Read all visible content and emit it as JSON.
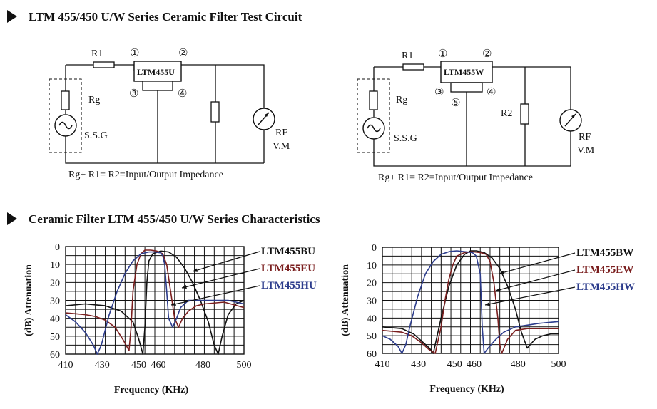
{
  "section1": {
    "title": "LTM 455/450 U/W Series Ceramic Filter Test Circuit"
  },
  "circuits": [
    {
      "filter_label": "LTM455U",
      "r1_label": "R1",
      "rg_label": "Rg",
      "ssg_label": "S.S.G",
      "rf_label": "RF",
      "vm_label": "V.M",
      "pins": [
        "①",
        "②",
        "③",
        "④"
      ],
      "equation": "Rg+ R1= R2=Input/Output Impedance"
    },
    {
      "filter_label": "LTM455W",
      "r1_label": "R1",
      "r2_label": "R2",
      "rg_label": "Rg",
      "ssg_label": "S.S.G",
      "rf_label": "RF",
      "vm_label": "V.M",
      "pins": [
        "①",
        "②",
        "③",
        "④",
        "⑤"
      ],
      "equation": "Rg+ R1= R2=Input/Output Impedance"
    }
  ],
  "section2": {
    "title": "Ceramic Filter LTM 455/450 U/W Series Characteristics"
  },
  "colors": {
    "black_series": "#111111",
    "red_series": "#7a1e1e",
    "blue_series": "#2c3c8c"
  },
  "chart_data": [
    {
      "type": "line",
      "xlabel": "Frequency (KHz)",
      "ylabel": "(dB) Attenuation",
      "x_ticks": [
        "410",
        "430",
        "450",
        "460",
        "480",
        "500"
      ],
      "y_ticks": [
        "0",
        "10",
        "20",
        "30",
        "40",
        "50",
        "60"
      ],
      "xlim": [
        410,
        500
      ],
      "ylim": [
        0,
        60
      ],
      "series": [
        {
          "name": "LTM455BU",
          "color": "#111111",
          "x": [
            410,
            420,
            430,
            438,
            444,
            447,
            449,
            450,
            451,
            452,
            454,
            458,
            462,
            466,
            470,
            474,
            478,
            482,
            485,
            487,
            489,
            492,
            496,
            500
          ],
          "y": [
            33,
            32,
            33,
            36,
            42,
            52,
            60,
            45,
            20,
            8,
            4,
            2.5,
            3,
            6,
            12,
            20,
            30,
            42,
            55,
            60,
            50,
            38,
            32,
            30
          ]
        },
        {
          "name": "LTM455EU",
          "color": "#7a1e1e",
          "x": [
            410,
            420,
            425,
            430,
            435,
            439,
            442,
            443,
            444,
            446,
            448,
            450,
            453,
            456,
            459,
            461,
            463,
            465,
            467,
            469,
            472,
            476,
            480,
            490,
            500
          ],
          "y": [
            37,
            38,
            39,
            41,
            45,
            52,
            58,
            45,
            25,
            10,
            4,
            2,
            2,
            2.5,
            4,
            10,
            25,
            40,
            45,
            40,
            36,
            33,
            32,
            31,
            34
          ]
        },
        {
          "name": "LTM455HU",
          "color": "#2c3c8c",
          "x": [
            410,
            415,
            420,
            424,
            426,
            428,
            432,
            436,
            440,
            444,
            448,
            452,
            455,
            458,
            459,
            460,
            461,
            462,
            464,
            466,
            468,
            472,
            478,
            485,
            492,
            500
          ],
          "y": [
            38,
            42,
            48,
            55,
            60,
            55,
            38,
            25,
            15,
            8,
            4,
            3,
            3,
            3.5,
            5,
            10,
            25,
            40,
            45,
            40,
            34,
            30,
            30,
            30,
            30,
            32
          ]
        }
      ],
      "annotations": [
        "LTM455BU",
        "LTM455EU",
        "LTM455HU"
      ]
    },
    {
      "type": "line",
      "xlabel": "Frequency (KHz)",
      "ylabel": "(dB) Attenuation",
      "x_ticks": [
        "410",
        "430",
        "450",
        "460",
        "480",
        "500"
      ],
      "y_ticks": [
        "0",
        "10",
        "20",
        "30",
        "40",
        "50",
        "60"
      ],
      "xlim": [
        410,
        500
      ],
      "ylim": [
        0,
        60
      ],
      "series": [
        {
          "name": "LTM455BW",
          "color": "#111111",
          "x": [
            410,
            420,
            426,
            430,
            434,
            436,
            440,
            444,
            448,
            452,
            455,
            458,
            462,
            466,
            470,
            474,
            478,
            481,
            484,
            488,
            492,
            496,
            500
          ],
          "y": [
            45,
            46,
            49,
            53,
            57,
            60,
            40,
            22,
            10,
            4,
            2,
            2,
            3,
            6,
            12,
            22,
            35,
            48,
            57,
            52,
            50,
            49,
            49
          ]
        },
        {
          "name": "LTM455EW",
          "color": "#7a1e1e",
          "x": [
            410,
            420,
            425,
            430,
            434,
            437,
            440,
            442,
            444,
            446,
            448,
            452,
            456,
            460,
            463,
            465,
            467,
            469,
            470,
            471,
            474,
            478,
            484,
            490,
            500
          ],
          "y": [
            47,
            48,
            50,
            54,
            58,
            60,
            45,
            30,
            18,
            10,
            5,
            3,
            2.5,
            3,
            4,
            8,
            20,
            40,
            55,
            60,
            52,
            47,
            46,
            46,
            46
          ]
        },
        {
          "name": "LTM455HW",
          "color": "#2c3c8c",
          "x": [
            410,
            414,
            418,
            420,
            422,
            424,
            428,
            432,
            436,
            440,
            444,
            448,
            452,
            456,
            458,
            460,
            461,
            462,
            464,
            468,
            472,
            478,
            484,
            490,
            500
          ],
          "y": [
            50,
            52,
            56,
            60,
            55,
            45,
            28,
            15,
            8,
            4,
            2.5,
            2,
            2.5,
            3,
            5,
            15,
            45,
            60,
            57,
            52,
            48,
            45,
            44,
            43,
            42
          ]
        }
      ],
      "annotations": [
        "LTM455BW",
        "LTM455EW",
        "LTM455HW"
      ]
    }
  ]
}
